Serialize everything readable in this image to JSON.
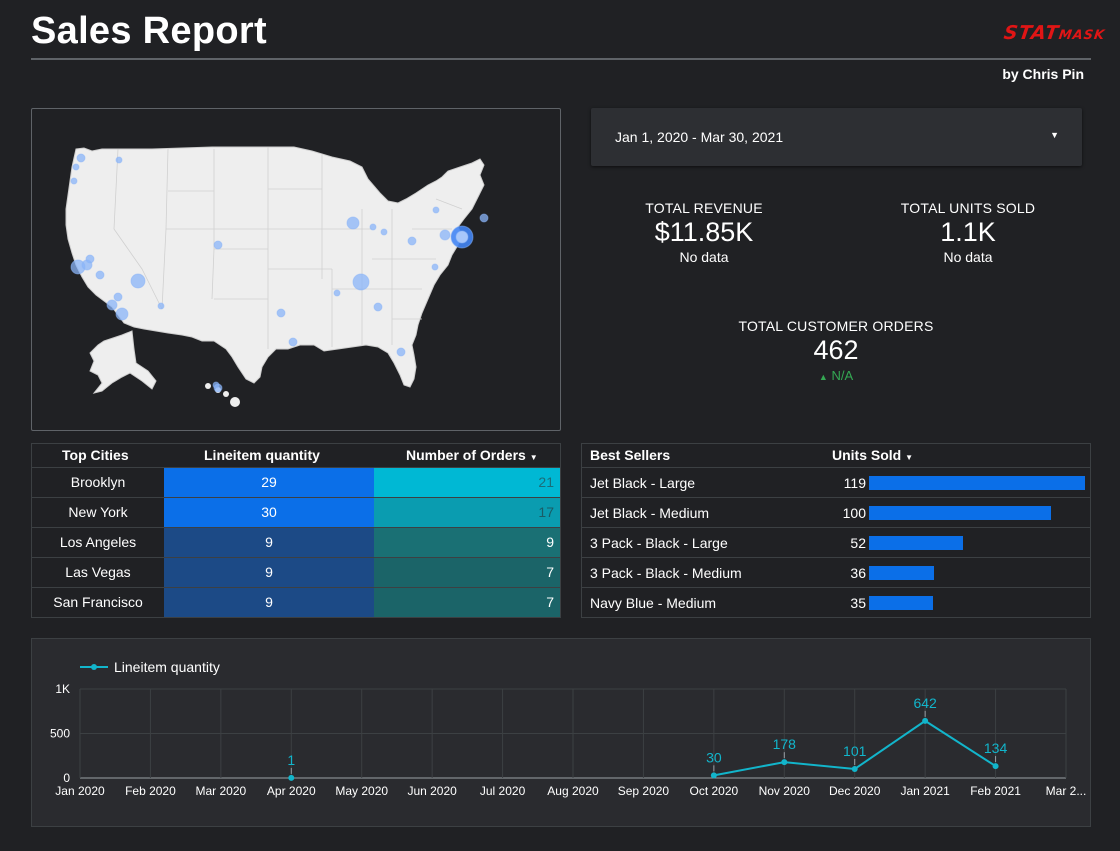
{
  "header": {
    "title": "Sales Report",
    "logo_main": "STAT",
    "logo_small": "MASK",
    "logo_color": "#e01515",
    "byline": "by Chris Pin"
  },
  "date_filter": {
    "value": "Jan 1, 2020 - Mar 30, 2021",
    "caret_icon": "caret-down-icon"
  },
  "kpis": {
    "revenue": {
      "label": "TOTAL REVENUE",
      "value": "$11.85K",
      "sub": "No data"
    },
    "units": {
      "label": "TOTAL UNITS SOLD",
      "value": "1.1K",
      "sub": "No data"
    },
    "orders": {
      "label": "TOTAL CUSTOMER ORDERS",
      "value": "462",
      "sub": "N/A",
      "sub_color": "#34a853"
    }
  },
  "cities_table": {
    "headers": {
      "city": "Top Cities",
      "quantity": "Lineitem quantity",
      "orders": "Number of Orders"
    },
    "sort_icon": "caret-down-icon",
    "rows": [
      {
        "city": "Brooklyn",
        "quantity": "29",
        "orders": "21"
      },
      {
        "city": "New York",
        "quantity": "30",
        "orders": "17"
      },
      {
        "city": "Los Angeles",
        "quantity": "9",
        "orders": "9"
      },
      {
        "city": "Las Vegas",
        "quantity": "9",
        "orders": "7"
      },
      {
        "city": "San Francisco",
        "quantity": "9",
        "orders": "7"
      }
    ]
  },
  "sellers_table": {
    "headers": {
      "name": "Best Sellers",
      "units": "Units Sold"
    },
    "sort_icon": "caret-down-icon",
    "bar_color": "#0b6fe8",
    "rows": [
      {
        "name": "Jet Black - Large",
        "units": 119
      },
      {
        "name": "Jet Black - Medium",
        "units": 100
      },
      {
        "name": "3 Pack - Black - Large",
        "units": 52
      },
      {
        "name": "3 Pack - Black - Medium",
        "units": 36
      },
      {
        "name": "Navy Blue - Medium",
        "units": 35
      }
    ]
  },
  "map": {
    "type": "bubble-map",
    "region": "United States",
    "bubble_color": "#8ab4f8"
  },
  "chart_data": {
    "type": "line",
    "series": [
      {
        "name": "Lineitem quantity",
        "color": "#12b5cb",
        "points": [
          {
            "x": "Apr 2020",
            "y": 1,
            "label": "1"
          },
          {
            "x": "Oct 2020",
            "y": 30,
            "label": "30"
          },
          {
            "x": "Nov 2020",
            "y": 178,
            "label": "178"
          },
          {
            "x": "Dec 2020",
            "y": 101,
            "label": "101"
          },
          {
            "x": "Jan 2021",
            "y": 642,
            "label": "642"
          },
          {
            "x": "Feb 2021",
            "y": 134,
            "label": "134"
          }
        ]
      }
    ],
    "x_ticks": [
      "Jan 2020",
      "Feb 2020",
      "Mar 2020",
      "Apr 2020",
      "May 2020",
      "Jun 2020",
      "Jul 2020",
      "Aug 2020",
      "Sep 2020",
      "Oct 2020",
      "Nov 2020",
      "Dec 2020",
      "Jan 2021",
      "Feb 2021",
      "Mar 2..."
    ],
    "y_ticks": [
      {
        "value": 0,
        "label": "0"
      },
      {
        "value": 500,
        "label": "500"
      },
      {
        "value": 1000,
        "label": "1K"
      }
    ],
    "ylim": [
      0,
      1000
    ],
    "legend_position": "top-left",
    "grid": true
  }
}
